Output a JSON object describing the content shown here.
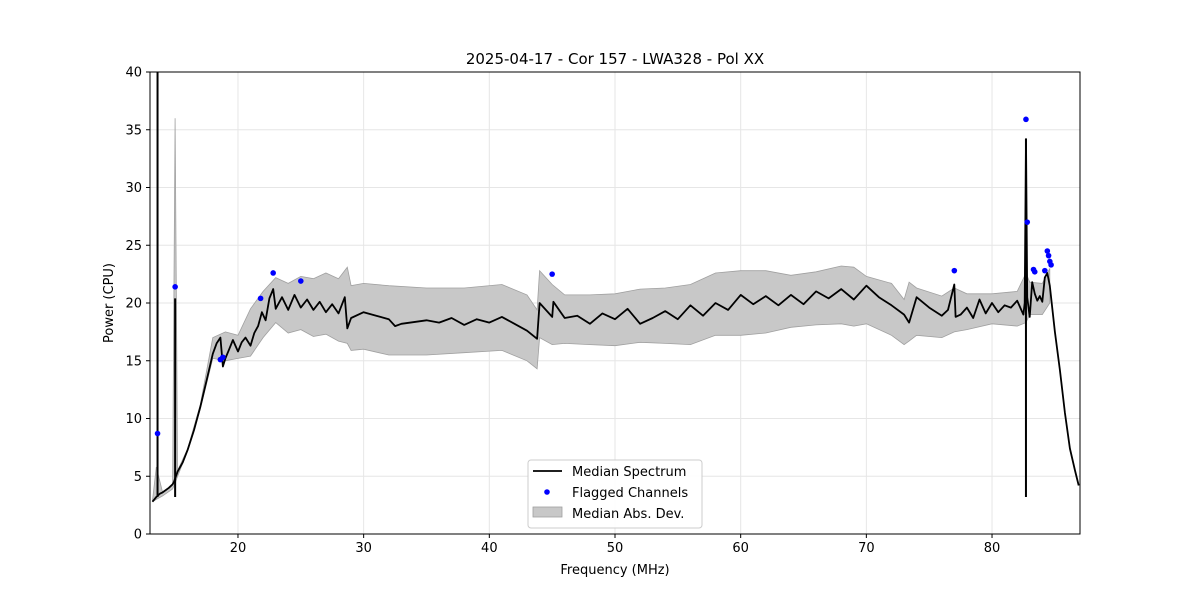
{
  "chart_data": {
    "type": "line",
    "title": "2025-04-17 - Cor 157 - LWA328 - Pol XX",
    "xlabel": "Frequency (MHz)",
    "ylabel": "Power (CPU)",
    "xlim": [
      13.0,
      87.0
    ],
    "ylim": [
      0,
      40
    ],
    "xticks": [
      20,
      30,
      40,
      50,
      60,
      70,
      80
    ],
    "yticks": [
      0,
      5,
      10,
      15,
      20,
      25,
      30,
      35,
      40
    ],
    "grid": true,
    "legend_position": "bottom-center",
    "legend": [
      "Median Spectrum",
      "Flagged Channels",
      "Median Abs. Dev."
    ],
    "colors": {
      "line": "#000000",
      "points": "#0000ff",
      "band": "#c8c8c8",
      "band_edge": "#a0a0a0",
      "grid": "#e6e6e6"
    },
    "series": [
      {
        "name": "Median Spectrum",
        "kind": "line",
        "x": [
          13.2,
          13.5,
          13.6,
          13.7,
          13.8,
          14.0,
          14.5,
          14.8,
          14.9,
          15.0,
          15.1,
          15.2,
          15.6,
          16.0,
          16.5,
          17.0,
          17.5,
          18.0,
          18.3,
          18.6,
          18.8,
          19.0,
          19.3,
          19.6,
          20.0,
          20.3,
          20.6,
          21.0,
          21.3,
          21.6,
          21.9,
          22.2,
          22.5,
          22.8,
          23.0,
          23.5,
          24.0,
          24.5,
          25.0,
          25.5,
          26.0,
          26.5,
          27.0,
          27.5,
          28.0,
          28.5,
          28.7,
          29.0,
          30.0,
          31.0,
          32.0,
          32.5,
          33.0,
          35.0,
          36.0,
          37.0,
          38.0,
          39.0,
          40.0,
          41.0,
          42.0,
          43.0,
          43.8,
          44.0,
          45.0,
          45.1,
          46.0,
          47.0,
          48.0,
          49.0,
          50.0,
          51.0,
          52.0,
          53.0,
          54.0,
          55.0,
          56.0,
          57.0,
          58.0,
          59.0,
          60.0,
          61.0,
          62.0,
          63.0,
          64.0,
          65.0,
          66.0,
          67.0,
          68.0,
          69.0,
          70.0,
          71.0,
          72.0,
          73.0,
          73.4,
          74.0,
          75.0,
          76.0,
          76.5,
          77.0,
          77.1,
          77.5,
          78.0,
          78.5,
          79.0,
          79.5,
          80.0,
          80.5,
          81.0,
          81.5,
          82.0,
          82.5,
          82.6,
          82.7,
          82.8,
          83.0,
          83.2,
          83.4,
          83.6,
          83.8,
          84.0,
          84.2,
          84.4,
          84.6,
          85.0,
          85.4,
          85.8,
          86.2,
          86.6,
          86.9
        ],
        "y": [
          2.8,
          3.2,
          3.3,
          3.4,
          3.5,
          3.6,
          4.0,
          4.3,
          4.5,
          4.8,
          5.1,
          5.4,
          6.2,
          7.3,
          9.0,
          11.0,
          13.3,
          15.6,
          16.5,
          17.0,
          14.5,
          15.2,
          16.0,
          16.8,
          15.8,
          16.6,
          17.0,
          16.3,
          17.4,
          18.0,
          19.2,
          18.5,
          20.4,
          21.2,
          19.5,
          20.5,
          19.4,
          20.7,
          19.6,
          20.3,
          19.4,
          20.1,
          19.2,
          19.9,
          19.1,
          20.5,
          17.8,
          18.7,
          19.2,
          18.9,
          18.6,
          18.0,
          18.2,
          18.5,
          18.3,
          18.7,
          18.1,
          18.6,
          18.3,
          18.8,
          18.2,
          17.6,
          16.9,
          20.0,
          18.8,
          20.1,
          18.7,
          18.9,
          18.2,
          19.1,
          18.6,
          19.5,
          18.2,
          18.7,
          19.3,
          18.6,
          19.8,
          18.9,
          20.0,
          19.4,
          20.7,
          19.9,
          20.6,
          19.8,
          20.7,
          19.9,
          21.0,
          20.4,
          21.2,
          20.3,
          21.5,
          20.5,
          19.8,
          19.0,
          18.3,
          20.5,
          19.6,
          18.9,
          19.4,
          21.6,
          18.8,
          19.0,
          19.6,
          18.7,
          20.3,
          19.1,
          20.0,
          19.2,
          19.8,
          19.6,
          20.2,
          19.0,
          20.0,
          34.2,
          20.5,
          18.8,
          21.8,
          20.8,
          20.2,
          20.6,
          20.1,
          22.2,
          22.6,
          21.5,
          17.5,
          14.2,
          10.5,
          7.4,
          5.5,
          4.2
        ],
        "spikes": [
          [
            13.6,
            40.0
          ],
          [
            15.0,
            20.4
          ],
          [
            82.7,
            34.2
          ]
        ]
      },
      {
        "name": "Flagged Channels",
        "kind": "scatter",
        "x": [
          13.6,
          15.0,
          18.6,
          18.8,
          21.8,
          22.8,
          25.0,
          45.0,
          77.0,
          82.7,
          82.8,
          83.3,
          83.4,
          84.2,
          84.4,
          84.5,
          84.6,
          84.7
        ],
        "y": [
          8.7,
          21.4,
          15.1,
          15.3,
          20.4,
          22.6,
          21.9,
          22.5,
          22.8,
          35.9,
          27.0,
          22.9,
          22.7,
          22.8,
          24.5,
          24.1,
          23.6,
          23.3
        ]
      },
      {
        "name": "Median Abs. Dev.",
        "kind": "band",
        "x": [
          13.2,
          13.5,
          14.0,
          14.8,
          15.0,
          15.2,
          16.0,
          17.0,
          18.0,
          19.0,
          20.0,
          21.0,
          22.0,
          23.0,
          24.0,
          25.0,
          26.0,
          27.0,
          28.0,
          28.7,
          29.0,
          30.0,
          32.0,
          35.0,
          38.0,
          41.0,
          43.0,
          43.8,
          44.0,
          45.0,
          46.0,
          48.0,
          50.0,
          52.0,
          54.0,
          56.0,
          58.0,
          60.0,
          62.0,
          64.0,
          66.0,
          68.0,
          69.0,
          70.0,
          72.0,
          73.0,
          73.4,
          74.0,
          76.0,
          77.0,
          78.0,
          80.0,
          82.0,
          82.7,
          83.0,
          84.0,
          84.6
        ],
        "lower": [
          2.8,
          3.0,
          3.3,
          3.9,
          4.4,
          5.0,
          7.2,
          10.8,
          15.2,
          15.0,
          15.2,
          15.4,
          17.0,
          18.3,
          17.4,
          17.7,
          17.1,
          17.3,
          16.7,
          16.5,
          15.9,
          16.0,
          15.5,
          15.5,
          15.7,
          15.9,
          15.0,
          14.3,
          17.0,
          16.4,
          16.5,
          16.4,
          16.3,
          16.6,
          16.5,
          16.4,
          17.2,
          17.2,
          17.4,
          17.9,
          18.1,
          18.2,
          18.0,
          18.2,
          17.2,
          16.4,
          16.7,
          17.2,
          17.0,
          17.5,
          17.7,
          18.2,
          18.0,
          18.3,
          19.0,
          19.0,
          20.0
        ],
        "upper": [
          2.9,
          5.8,
          3.6,
          4.3,
          36.0,
          5.5,
          7.4,
          11.2,
          17.0,
          17.5,
          17.2,
          19.5,
          21.0,
          22.2,
          21.7,
          22.3,
          22.1,
          22.6,
          22.1,
          23.1,
          21.5,
          21.7,
          21.5,
          21.3,
          21.3,
          21.6,
          20.7,
          19.4,
          22.8,
          21.6,
          20.7,
          20.7,
          20.8,
          21.2,
          21.3,
          21.6,
          22.6,
          22.8,
          22.8,
          22.4,
          22.7,
          23.2,
          23.1,
          22.3,
          21.7,
          20.3,
          21.8,
          21.3,
          20.6,
          21.3,
          20.8,
          20.8,
          21.0,
          22.6,
          21.8,
          21.7,
          23.0
        ]
      }
    ]
  }
}
